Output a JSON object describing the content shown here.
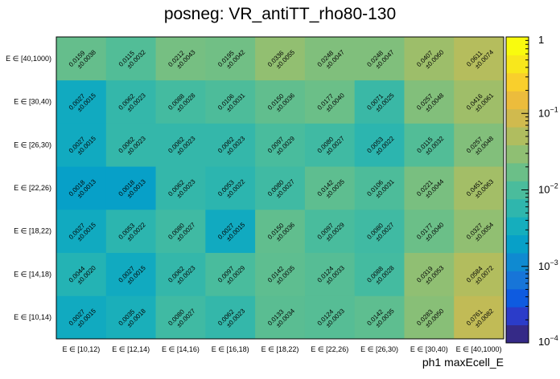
{
  "chart_data": {
    "type": "heatmap",
    "title": "posneg: VR_antiTT_rho80-130",
    "xlabel": "ph1 maxEcell_E",
    "ylabel": "",
    "x_categories": [
      "E ∈ [10,12)",
      "E ∈ [12,14)",
      "E ∈ [14,16)",
      "E ∈ [16,18)",
      "E ∈ [18,22)",
      "E ∈ [22,26)",
      "E ∈ [26,30)",
      "E ∈ [30,40)",
      "E ∈ [40,1000)"
    ],
    "y_categories": [
      "E ∈ [10,14)",
      "E ∈ [14,18)",
      "E ∈ [18,22)",
      "E ∈ [22,26)",
      "E ∈ [26,30)",
      "E ∈ [30,40)",
      "E ∈ [40,1000)"
    ],
    "values": [
      [
        0.0027,
        0.0035,
        0.008,
        0.0062,
        0.0133,
        0.0124,
        0.0142,
        0.0283,
        0.0761
      ],
      [
        0.0044,
        0.0027,
        0.0062,
        0.0097,
        0.0142,
        0.0124,
        0.0088,
        0.0319,
        0.0584
      ],
      [
        0.0027,
        0.0053,
        0.008,
        0.0027,
        0.015,
        0.0097,
        0.008,
        0.0177,
        0.0327
      ],
      [
        0.0018,
        0.0018,
        0.0062,
        0.0053,
        0.008,
        0.0142,
        0.0106,
        0.0221,
        0.0451
      ],
      [
        0.0027,
        0.0062,
        0.0062,
        0.0062,
        0.0097,
        0.008,
        0.0053,
        0.0115,
        0.0257
      ],
      [
        0.0027,
        0.0062,
        0.0088,
        0.0106,
        0.015,
        0.0177,
        0.0071,
        0.0257,
        0.0416
      ],
      [
        0.0159,
        0.0115,
        0.0212,
        0.0195,
        0.0336,
        0.0248,
        0.0248,
        0.0407,
        0.0611
      ]
    ],
    "errors": [
      [
        0.0015,
        0.0018,
        0.0027,
        0.0023,
        0.0034,
        0.0033,
        0.0035,
        0.005,
        0.0082
      ],
      [
        0.002,
        0.0015,
        0.0023,
        0.0029,
        0.0035,
        0.0033,
        0.0028,
        0.0053,
        0.0072
      ],
      [
        0.0015,
        0.0022,
        0.0027,
        0.0015,
        0.0036,
        0.0029,
        0.0027,
        0.004,
        0.0054
      ],
      [
        0.0013,
        0.0013,
        0.0023,
        0.0022,
        0.0027,
        0.0035,
        0.0031,
        0.0044,
        0.0063
      ],
      [
        0.0015,
        0.0023,
        0.0023,
        0.0023,
        0.0029,
        0.0027,
        0.0022,
        0.0032,
        0.0048
      ],
      [
        0.0015,
        0.0023,
        0.0028,
        0.0031,
        0.0036,
        0.004,
        0.0025,
        0.0048,
        0.0061
      ],
      [
        0.0038,
        0.0032,
        0.0043,
        0.0042,
        0.0055,
        0.0047,
        0.0047,
        0.006,
        0.0074
      ]
    ],
    "error_prefix": "±",
    "colorbar": {
      "scale": "log",
      "range": [
        0.0001,
        1
      ],
      "ticks": [
        {
          "value": 1,
          "base": "1",
          "exp": ""
        },
        {
          "value": 0.1,
          "base": "10",
          "exp": "−1"
        },
        {
          "value": 0.01,
          "base": "10",
          "exp": "−2"
        },
        {
          "value": 0.001,
          "base": "10",
          "exp": "−3"
        },
        {
          "value": 0.0001,
          "base": "10",
          "exp": "−4"
        }
      ],
      "palette": [
        "#352a87",
        "#2b3cc9",
        "#0e5be0",
        "#1775d8",
        "#0f8ad1",
        "#07a0c8",
        "#15aebd",
        "#2fb6ad",
        "#4abc9c",
        "#6bbf88",
        "#8fbf73",
        "#b0bd5f",
        "#d0ba4e",
        "#ecbc3c",
        "#f9cf2c",
        "#f8e71c",
        "#f9fb0e"
      ]
    }
  }
}
